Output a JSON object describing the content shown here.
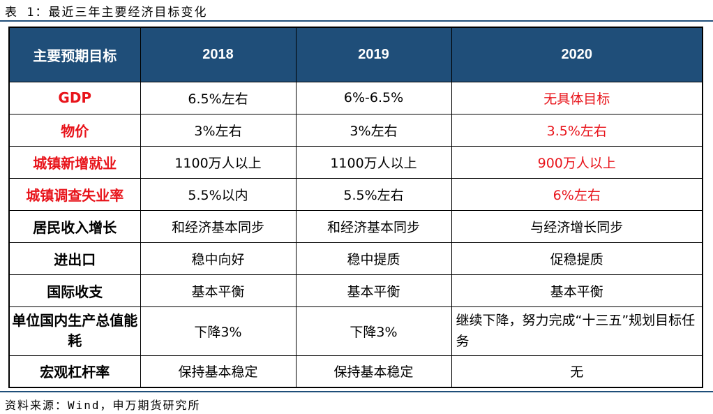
{
  "caption": "表 1：最近三年主要经济目标变化",
  "source": "资料来源：Wind，申万期货研究所",
  "table": {
    "headers": [
      "主要预期目标",
      "2018",
      "2019",
      "2020"
    ],
    "rows": [
      {
        "label": "GDP",
        "v2018": "6.5%左右",
        "v2019": "6%-6.5%",
        "v2020": "无具体目标"
      },
      {
        "label": "物价",
        "v2018": "3%左右",
        "v2019": "3%左右",
        "v2020": "3.5%左右"
      },
      {
        "label": "城镇新增就业",
        "v2018": "1100万人以上",
        "v2019": "1100万人以上",
        "v2020": "900万人以上"
      },
      {
        "label": "城镇调查失业率",
        "v2018": "5.5%以内",
        "v2019": "5.5%左右",
        "v2020": "6%左右"
      },
      {
        "label": "居民收入增长",
        "v2018": "和经济基本同步",
        "v2019": "和经济基本同步",
        "v2020": "与经济增长同步"
      },
      {
        "label": "进出口",
        "v2018": "稳中向好",
        "v2019": "稳中提质",
        "v2020": "促稳提质"
      },
      {
        "label": "国际收支",
        "v2018": "基本平衡",
        "v2019": "基本平衡",
        "v2020": "基本平衡"
      },
      {
        "label": "单位国内生产总值能耗",
        "v2018": "下降3%",
        "v2019": "下降3%",
        "v2020": "继续下降，努力完成“十三五”规划目标任务"
      },
      {
        "label": "宏观杠杆率",
        "v2018": "保持基本稳定",
        "v2019": "保持基本稳定",
        "v2020": "无"
      }
    ]
  },
  "colors": {
    "header_bg": "#1f4e79",
    "highlight": "#e8141b"
  }
}
